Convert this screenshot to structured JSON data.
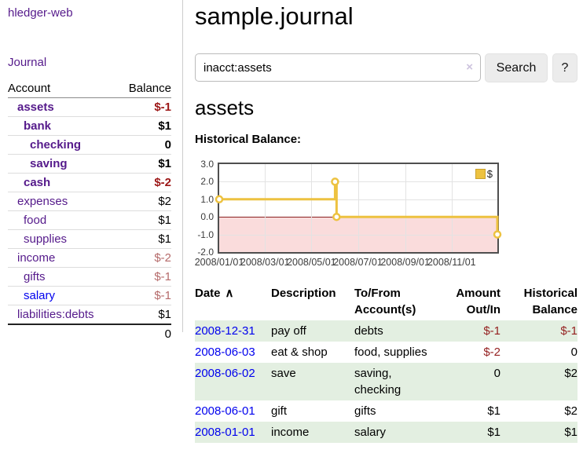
{
  "app": {
    "brand": "hledger-web",
    "nav_journal": "Journal"
  },
  "sidebar": {
    "columns": [
      "Account",
      "Balance"
    ],
    "rows": [
      {
        "account": "assets",
        "balance": "$-1",
        "indent": 0,
        "bold": true,
        "value_class": "neg"
      },
      {
        "account": "bank",
        "balance": "$1",
        "indent": 1,
        "bold": true,
        "value_class": "pos"
      },
      {
        "account": "checking",
        "balance": "0",
        "indent": 2,
        "bold": true,
        "value_class": "pos"
      },
      {
        "account": "saving",
        "balance": "$1",
        "indent": 2,
        "bold": true,
        "value_class": "pos"
      },
      {
        "account": "cash",
        "balance": "$-2",
        "indent": 1,
        "bold": true,
        "value_class": "neg"
      },
      {
        "account": "expenses",
        "balance": "$2",
        "indent": 0,
        "bold": false,
        "value_class": "pos"
      },
      {
        "account": "food",
        "balance": "$1",
        "indent": 1,
        "bold": false,
        "value_class": "pos"
      },
      {
        "account": "supplies",
        "balance": "$1",
        "indent": 1,
        "bold": false,
        "value_class": "pos"
      },
      {
        "account": "income",
        "balance": "$-2",
        "indent": 0,
        "bold": false,
        "value_class": "mneg"
      },
      {
        "account": "gifts",
        "balance": "$-1",
        "indent": 1,
        "bold": false,
        "value_class": "mneg"
      },
      {
        "account": "salary",
        "balance": "$-1",
        "indent": 1,
        "bold": false,
        "value_class": "mneg",
        "link": "new"
      },
      {
        "account": "liabilities:debts",
        "balance": "$1",
        "indent": 0,
        "bold": false,
        "value_class": "pos"
      }
    ],
    "total": "0"
  },
  "header": {
    "title": "sample.journal"
  },
  "search": {
    "value": "inacct:assets",
    "clear_icon": "×",
    "button_label": "Search",
    "help_label": "?"
  },
  "account_page": {
    "heading": "assets",
    "chart_label": "Historical Balance:"
  },
  "chart_data": {
    "type": "line",
    "style": "step",
    "title": "Historical Balance",
    "legend": {
      "position": "top-right",
      "entries": [
        "$"
      ]
    },
    "series": [
      {
        "name": "$",
        "points": [
          [
            "2008-01-01",
            1
          ],
          [
            "2008-06-01",
            2
          ],
          [
            "2008-06-03",
            0
          ],
          [
            "2008-12-31",
            -1
          ]
        ]
      }
    ],
    "ylim": [
      -2,
      3
    ],
    "yticks": [
      3.0,
      2.0,
      1.0,
      0.0,
      -1.0,
      -2.0
    ],
    "ytick_labels": [
      "3.0",
      "2.0",
      "1.0",
      "0.0",
      "-1.0",
      "-2.0"
    ],
    "xticks": [
      "2008/01/01",
      "2008/03/01",
      "2008/05/01",
      "2008/07/01",
      "2008/09/01",
      "2008/11/01"
    ],
    "grid": true,
    "colors": {
      "line": "#edc240",
      "marker_fill": "#ffffff",
      "negative_region": "#fadcdc",
      "zero_line": "#8b1f1f"
    }
  },
  "register": {
    "sort_indicator": "∧",
    "columns": [
      {
        "label": "Date",
        "align": "left"
      },
      {
        "label": "Description",
        "align": "left"
      },
      {
        "label": "To/From Account(s)",
        "align": "left"
      },
      {
        "label": "Amount Out/In",
        "align": "right"
      },
      {
        "label": "Historical Balance",
        "align": "right"
      }
    ],
    "rows": [
      {
        "date": "2008-12-31",
        "description": "pay off",
        "accounts": "debts",
        "amount": "$-1",
        "balance": "$-1",
        "amount_negative": true,
        "balance_negative": true,
        "highlight": true
      },
      {
        "date": "2008-06-03",
        "description": "eat & shop",
        "accounts": "food, supplies",
        "amount": "$-2",
        "balance": "0",
        "amount_negative": true,
        "balance_negative": false,
        "highlight": false
      },
      {
        "date": "2008-06-02",
        "description": "save",
        "accounts": "saving, checking",
        "amount": "0",
        "balance": "$2",
        "amount_negative": false,
        "balance_negative": false,
        "highlight": true
      },
      {
        "date": "2008-06-01",
        "description": "gift",
        "accounts": "gifts",
        "amount": "$1",
        "balance": "$2",
        "amount_negative": false,
        "balance_negative": false,
        "highlight": false
      },
      {
        "date": "2008-01-01",
        "description": "income",
        "accounts": "salary",
        "amount": "$1",
        "balance": "$1",
        "amount_negative": false,
        "balance_negative": false,
        "highlight": true
      }
    ]
  },
  "colors": {
    "visited_link": "#551a8b",
    "link": "#0000ee",
    "negative_strong": "#9c1616",
    "negative_muted": "#b56a6a",
    "row_highlight_green": "#e3efe1",
    "chart_line_gold": "#edc240"
  }
}
